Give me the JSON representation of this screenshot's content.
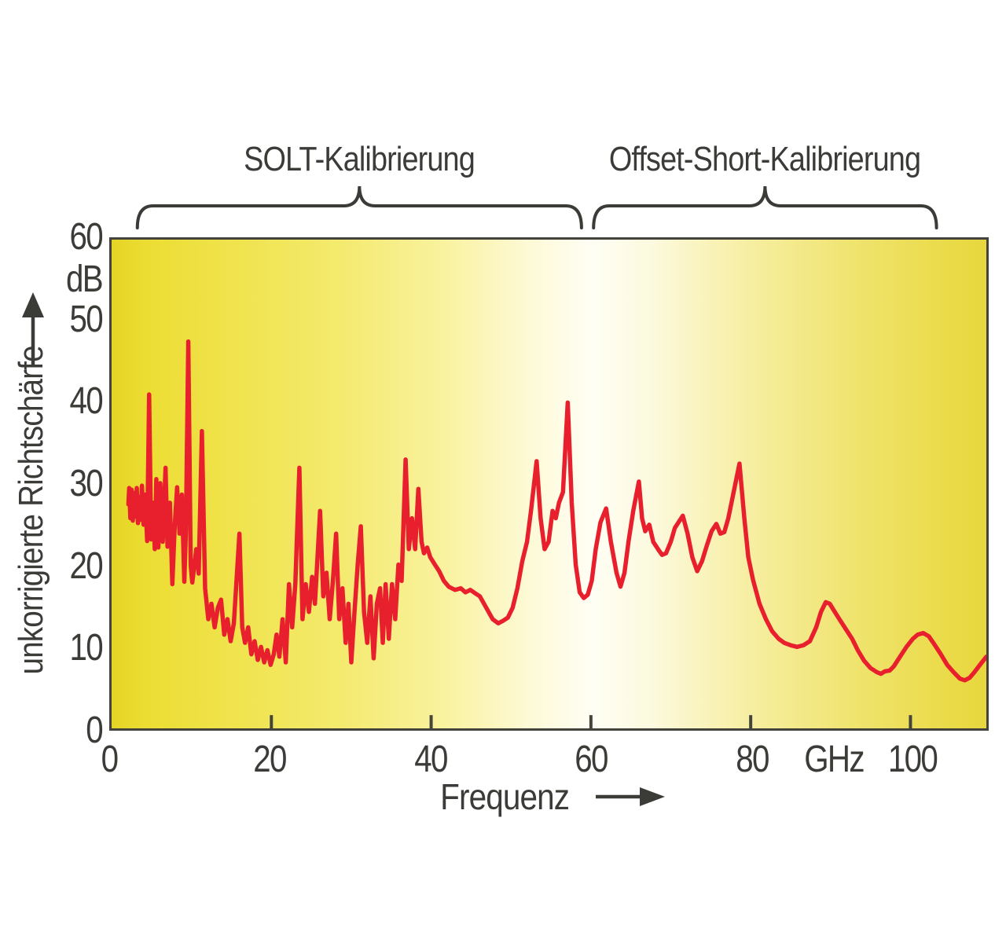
{
  "annotations": {
    "regions": [
      {
        "label": "SOLT-Kalibrierung",
        "x_start_ghz": 3.5,
        "x_end_ghz": 58.8
      },
      {
        "label": "Offset-Short-Kalibrierung",
        "x_start_ghz": 60.3,
        "x_end_ghz": 103.0
      }
    ]
  },
  "y_axis": {
    "unit": "dB",
    "title": "unkorrigierte Richtschärfe",
    "ticks": [
      60,
      50,
      40,
      30,
      20,
      10,
      0
    ]
  },
  "x_axis": {
    "title": "Frequenz",
    "unit": "GHz",
    "ticks": [
      0,
      20,
      40,
      60,
      80,
      100
    ],
    "unit_label_position_ghz": 90.2
  },
  "colors": {
    "curve": "#e8202e",
    "text": "#3b3b38",
    "axis_border": "#45443c",
    "plot_yellow_edge": "#e8d73d",
    "plot_center_light": "#fffef4"
  },
  "chart_data": {
    "type": "line",
    "title": "",
    "xlabel": "Frequenz",
    "ylabel": "unkorrigierte Richtschärfe",
    "x_unit": "GHz",
    "y_unit": "dB",
    "xlim": [
      0,
      109.5
    ],
    "ylim": [
      0,
      60
    ],
    "x_ticks": [
      0,
      20,
      40,
      60,
      80,
      100
    ],
    "y_ticks": [
      0,
      10,
      20,
      30,
      40,
      50,
      60
    ],
    "grid": false,
    "legend_position": "none",
    "region_annotations": [
      {
        "label": "SOLT-Kalibrierung",
        "from_ghz": 3.5,
        "to_ghz": 58.8
      },
      {
        "label": "Offset-Short-Kalibrierung",
        "from_ghz": 60.3,
        "to_ghz": 103.0
      }
    ],
    "points": [
      [
        2.1,
        27.5
      ],
      [
        2.2,
        29.5
      ],
      [
        2.35,
        25.8
      ],
      [
        2.5,
        29.3
      ],
      [
        2.65,
        25.5
      ],
      [
        2.8,
        28.9
      ],
      [
        3.0,
        26.0
      ],
      [
        3.15,
        29.5
      ],
      [
        3.3,
        25.2
      ],
      [
        3.5,
        28.4
      ],
      [
        3.65,
        25.6
      ],
      [
        3.8,
        29.8
      ],
      [
        4.0,
        25.0
      ],
      [
        4.2,
        28.7
      ],
      [
        4.45,
        23.0
      ],
      [
        4.7,
        41.0
      ],
      [
        4.95,
        23.2
      ],
      [
        5.2,
        27.7
      ],
      [
        5.4,
        22.0
      ],
      [
        5.6,
        30.6
      ],
      [
        5.85,
        22.2
      ],
      [
        6.1,
        30.1
      ],
      [
        6.4,
        22.9
      ],
      [
        6.75,
        32.0
      ],
      [
        7.0,
        22.3
      ],
      [
        7.3,
        27.7
      ],
      [
        7.6,
        17.7
      ],
      [
        7.9,
        24.8
      ],
      [
        8.2,
        29.6
      ],
      [
        8.5,
        23.9
      ],
      [
        8.8,
        28.7
      ],
      [
        9.1,
        18.0
      ],
      [
        9.3,
        24.0
      ],
      [
        9.6,
        47.5
      ],
      [
        9.9,
        20.0
      ],
      [
        10.1,
        17.9
      ],
      [
        10.6,
        22.0
      ],
      [
        10.9,
        19.0
      ],
      [
        11.3,
        36.5
      ],
      [
        11.7,
        17.2
      ],
      [
        12.1,
        13.4
      ],
      [
        12.5,
        15.3
      ],
      [
        12.9,
        12.4
      ],
      [
        13.3,
        14.8
      ],
      [
        13.7,
        15.8
      ],
      [
        14.1,
        11.5
      ],
      [
        14.5,
        13.4
      ],
      [
        14.9,
        10.7
      ],
      [
        15.3,
        12.9
      ],
      [
        16.0,
        23.9
      ],
      [
        16.35,
        12.4
      ],
      [
        16.7,
        10.5
      ],
      [
        17.1,
        12.4
      ],
      [
        17.5,
        9.1
      ],
      [
        17.9,
        10.7
      ],
      [
        18.3,
        8.4
      ],
      [
        18.7,
        10.0
      ],
      [
        19.1,
        8.1
      ],
      [
        19.5,
        9.6
      ],
      [
        19.9,
        7.8
      ],
      [
        20.3,
        9.1
      ],
      [
        20.65,
        11.5
      ],
      [
        21.0,
        8.8
      ],
      [
        21.4,
        13.4
      ],
      [
        21.8,
        8.1
      ],
      [
        22.2,
        17.7
      ],
      [
        22.6,
        12.4
      ],
      [
        23.0,
        17.7
      ],
      [
        23.5,
        32.0
      ],
      [
        23.9,
        13.4
      ],
      [
        24.3,
        17.7
      ],
      [
        24.7,
        14.3
      ],
      [
        25.1,
        18.6
      ],
      [
        25.45,
        15.3
      ],
      [
        26.1,
        26.7
      ],
      [
        26.5,
        16.2
      ],
      [
        26.9,
        19.1
      ],
      [
        27.3,
        13.4
      ],
      [
        27.7,
        18.1
      ],
      [
        28.1,
        23.9
      ],
      [
        28.5,
        13.4
      ],
      [
        28.9,
        17.2
      ],
      [
        29.3,
        10.5
      ],
      [
        29.65,
        15.3
      ],
      [
        30.0,
        8.1
      ],
      [
        30.4,
        14.3
      ],
      [
        30.8,
        20.1
      ],
      [
        31.2,
        24.8
      ],
      [
        31.6,
        14.3
      ],
      [
        32.0,
        10.5
      ],
      [
        32.4,
        16.2
      ],
      [
        32.8,
        8.6
      ],
      [
        33.2,
        15.3
      ],
      [
        33.6,
        17.2
      ],
      [
        33.95,
        10.5
      ],
      [
        34.3,
        17.7
      ],
      [
        34.7,
        11.0
      ],
      [
        35.1,
        17.7
      ],
      [
        35.5,
        13.4
      ],
      [
        35.9,
        20.1
      ],
      [
        36.3,
        18.1
      ],
      [
        36.8,
        33.0
      ],
      [
        37.2,
        22.0
      ],
      [
        37.6,
        25.8
      ],
      [
        38.0,
        22.0
      ],
      [
        38.4,
        29.4
      ],
      [
        38.8,
        22.9
      ],
      [
        39.1,
        21.5
      ],
      [
        39.5,
        22.2
      ],
      [
        39.9,
        21.0
      ],
      [
        40.4,
        20.2
      ],
      [
        41.0,
        19.3
      ],
      [
        41.6,
        18.1
      ],
      [
        42.2,
        17.4
      ],
      [
        43.0,
        17.0
      ],
      [
        43.7,
        17.2
      ],
      [
        44.3,
        16.7
      ],
      [
        44.9,
        17.0
      ],
      [
        45.5,
        16.6
      ],
      [
        46.1,
        16.2
      ],
      [
        46.9,
        14.8
      ],
      [
        47.7,
        13.4
      ],
      [
        48.4,
        12.9
      ],
      [
        49.0,
        13.2
      ],
      [
        49.6,
        13.6
      ],
      [
        50.2,
        14.8
      ],
      [
        50.8,
        17.2
      ],
      [
        51.4,
        20.5
      ],
      [
        52.0,
        22.9
      ],
      [
        52.5,
        26.7
      ],
      [
        53.2,
        32.8
      ],
      [
        53.7,
        25.8
      ],
      [
        54.2,
        22.0
      ],
      [
        54.7,
        22.9
      ],
      [
        55.2,
        26.7
      ],
      [
        55.6,
        25.8
      ],
      [
        56.0,
        27.7
      ],
      [
        56.5,
        29.0
      ],
      [
        57.1,
        40.0
      ],
      [
        57.6,
        27.7
      ],
      [
        58.1,
        20.1
      ],
      [
        58.6,
        16.7
      ],
      [
        59.1,
        16.0
      ],
      [
        59.6,
        16.4
      ],
      [
        60.1,
        18.1
      ],
      [
        60.6,
        22.0
      ],
      [
        61.2,
        25.3
      ],
      [
        61.9,
        27.0
      ],
      [
        62.5,
        22.9
      ],
      [
        63.2,
        19.1
      ],
      [
        63.7,
        17.4
      ],
      [
        64.2,
        19.1
      ],
      [
        64.7,
        22.9
      ],
      [
        65.3,
        26.7
      ],
      [
        66.0,
        30.3
      ],
      [
        66.4,
        25.8
      ],
      [
        66.8,
        24.2
      ],
      [
        67.3,
        25.0
      ],
      [
        67.8,
        22.9
      ],
      [
        68.4,
        22.0
      ],
      [
        68.9,
        21.3
      ],
      [
        69.4,
        21.5
      ],
      [
        70.0,
        22.9
      ],
      [
        70.5,
        24.6
      ],
      [
        71.5,
        26.1
      ],
      [
        72.1,
        23.9
      ],
      [
        72.7,
        21.0
      ],
      [
        73.3,
        19.3
      ],
      [
        73.9,
        20.5
      ],
      [
        74.5,
        22.4
      ],
      [
        75.1,
        24.2
      ],
      [
        75.7,
        25.1
      ],
      [
        76.2,
        23.9
      ],
      [
        76.7,
        24.1
      ],
      [
        77.2,
        25.8
      ],
      [
        77.8,
        28.7
      ],
      [
        78.6,
        32.5
      ],
      [
        79.2,
        25.8
      ],
      [
        79.7,
        21.0
      ],
      [
        80.3,
        18.2
      ],
      [
        81.1,
        15.3
      ],
      [
        81.9,
        13.4
      ],
      [
        82.7,
        11.9
      ],
      [
        83.5,
        11.0
      ],
      [
        84.2,
        10.5
      ],
      [
        85.0,
        10.2
      ],
      [
        85.8,
        10.0
      ],
      [
        86.6,
        10.2
      ],
      [
        87.4,
        10.7
      ],
      [
        88.2,
        12.4
      ],
      [
        88.8,
        14.3
      ],
      [
        89.4,
        15.5
      ],
      [
        89.9,
        15.3
      ],
      [
        90.4,
        14.5
      ],
      [
        91.1,
        13.4
      ],
      [
        91.9,
        12.2
      ],
      [
        92.7,
        11.0
      ],
      [
        93.4,
        9.6
      ],
      [
        94.2,
        8.3
      ],
      [
        95.0,
        7.4
      ],
      [
        95.8,
        6.9
      ],
      [
        96.3,
        6.7
      ],
      [
        96.8,
        7.0
      ],
      [
        97.4,
        7.1
      ],
      [
        97.9,
        7.6
      ],
      [
        98.7,
        8.8
      ],
      [
        99.5,
        10.0
      ],
      [
        100.3,
        11.0
      ],
      [
        100.9,
        11.5
      ],
      [
        101.6,
        11.7
      ],
      [
        102.3,
        11.3
      ],
      [
        103.0,
        10.3
      ],
      [
        103.8,
        9.1
      ],
      [
        104.6,
        7.8
      ],
      [
        105.4,
        6.9
      ],
      [
        106.2,
        6.1
      ],
      [
        106.8,
        5.9
      ],
      [
        107.4,
        6.2
      ],
      [
        108.0,
        6.9
      ],
      [
        108.7,
        7.8
      ],
      [
        109.5,
        8.8
      ]
    ]
  }
}
